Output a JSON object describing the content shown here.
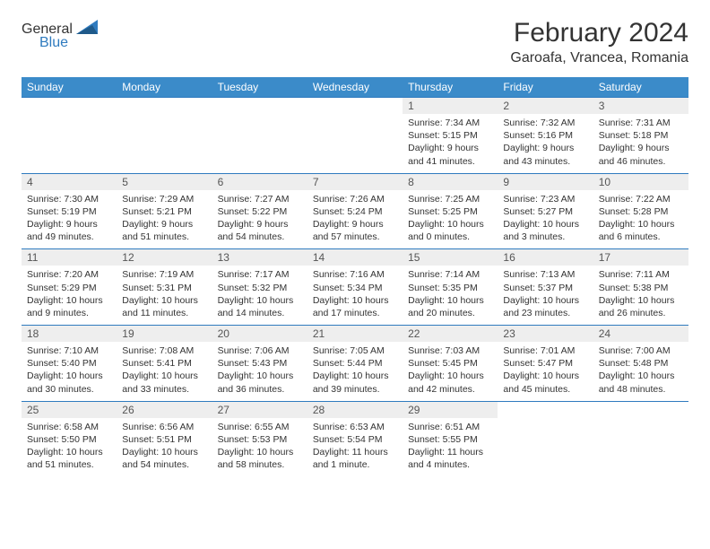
{
  "logo": {
    "text1": "General",
    "text2": "Blue"
  },
  "title": "February 2024",
  "location": "Garoafa, Vrancea, Romania",
  "header_bg": "#3b8bc9",
  "daynum_bg": "#eeeeee",
  "rule_color": "#2f7bbf",
  "weekdays": [
    "Sunday",
    "Monday",
    "Tuesday",
    "Wednesday",
    "Thursday",
    "Friday",
    "Saturday"
  ],
  "weeks": [
    [
      null,
      null,
      null,
      null,
      {
        "n": "1",
        "sr": "7:34 AM",
        "ss": "5:15 PM",
        "dl": "9 hours and 41 minutes."
      },
      {
        "n": "2",
        "sr": "7:32 AM",
        "ss": "5:16 PM",
        "dl": "9 hours and 43 minutes."
      },
      {
        "n": "3",
        "sr": "7:31 AM",
        "ss": "5:18 PM",
        "dl": "9 hours and 46 minutes."
      }
    ],
    [
      {
        "n": "4",
        "sr": "7:30 AM",
        "ss": "5:19 PM",
        "dl": "9 hours and 49 minutes."
      },
      {
        "n": "5",
        "sr": "7:29 AM",
        "ss": "5:21 PM",
        "dl": "9 hours and 51 minutes."
      },
      {
        "n": "6",
        "sr": "7:27 AM",
        "ss": "5:22 PM",
        "dl": "9 hours and 54 minutes."
      },
      {
        "n": "7",
        "sr": "7:26 AM",
        "ss": "5:24 PM",
        "dl": "9 hours and 57 minutes."
      },
      {
        "n": "8",
        "sr": "7:25 AM",
        "ss": "5:25 PM",
        "dl": "10 hours and 0 minutes."
      },
      {
        "n": "9",
        "sr": "7:23 AM",
        "ss": "5:27 PM",
        "dl": "10 hours and 3 minutes."
      },
      {
        "n": "10",
        "sr": "7:22 AM",
        "ss": "5:28 PM",
        "dl": "10 hours and 6 minutes."
      }
    ],
    [
      {
        "n": "11",
        "sr": "7:20 AM",
        "ss": "5:29 PM",
        "dl": "10 hours and 9 minutes."
      },
      {
        "n": "12",
        "sr": "7:19 AM",
        "ss": "5:31 PM",
        "dl": "10 hours and 11 minutes."
      },
      {
        "n": "13",
        "sr": "7:17 AM",
        "ss": "5:32 PM",
        "dl": "10 hours and 14 minutes."
      },
      {
        "n": "14",
        "sr": "7:16 AM",
        "ss": "5:34 PM",
        "dl": "10 hours and 17 minutes."
      },
      {
        "n": "15",
        "sr": "7:14 AM",
        "ss": "5:35 PM",
        "dl": "10 hours and 20 minutes."
      },
      {
        "n": "16",
        "sr": "7:13 AM",
        "ss": "5:37 PM",
        "dl": "10 hours and 23 minutes."
      },
      {
        "n": "17",
        "sr": "7:11 AM",
        "ss": "5:38 PM",
        "dl": "10 hours and 26 minutes."
      }
    ],
    [
      {
        "n": "18",
        "sr": "7:10 AM",
        "ss": "5:40 PM",
        "dl": "10 hours and 30 minutes."
      },
      {
        "n": "19",
        "sr": "7:08 AM",
        "ss": "5:41 PM",
        "dl": "10 hours and 33 minutes."
      },
      {
        "n": "20",
        "sr": "7:06 AM",
        "ss": "5:43 PM",
        "dl": "10 hours and 36 minutes."
      },
      {
        "n": "21",
        "sr": "7:05 AM",
        "ss": "5:44 PM",
        "dl": "10 hours and 39 minutes."
      },
      {
        "n": "22",
        "sr": "7:03 AM",
        "ss": "5:45 PM",
        "dl": "10 hours and 42 minutes."
      },
      {
        "n": "23",
        "sr": "7:01 AM",
        "ss": "5:47 PM",
        "dl": "10 hours and 45 minutes."
      },
      {
        "n": "24",
        "sr": "7:00 AM",
        "ss": "5:48 PM",
        "dl": "10 hours and 48 minutes."
      }
    ],
    [
      {
        "n": "25",
        "sr": "6:58 AM",
        "ss": "5:50 PM",
        "dl": "10 hours and 51 minutes."
      },
      {
        "n": "26",
        "sr": "6:56 AM",
        "ss": "5:51 PM",
        "dl": "10 hours and 54 minutes."
      },
      {
        "n": "27",
        "sr": "6:55 AM",
        "ss": "5:53 PM",
        "dl": "10 hours and 58 minutes."
      },
      {
        "n": "28",
        "sr": "6:53 AM",
        "ss": "5:54 PM",
        "dl": "11 hours and 1 minute."
      },
      {
        "n": "29",
        "sr": "6:51 AM",
        "ss": "5:55 PM",
        "dl": "11 hours and 4 minutes."
      },
      null,
      null
    ]
  ],
  "labels": {
    "sunrise": "Sunrise:",
    "sunset": "Sunset:",
    "daylight": "Daylight:"
  }
}
